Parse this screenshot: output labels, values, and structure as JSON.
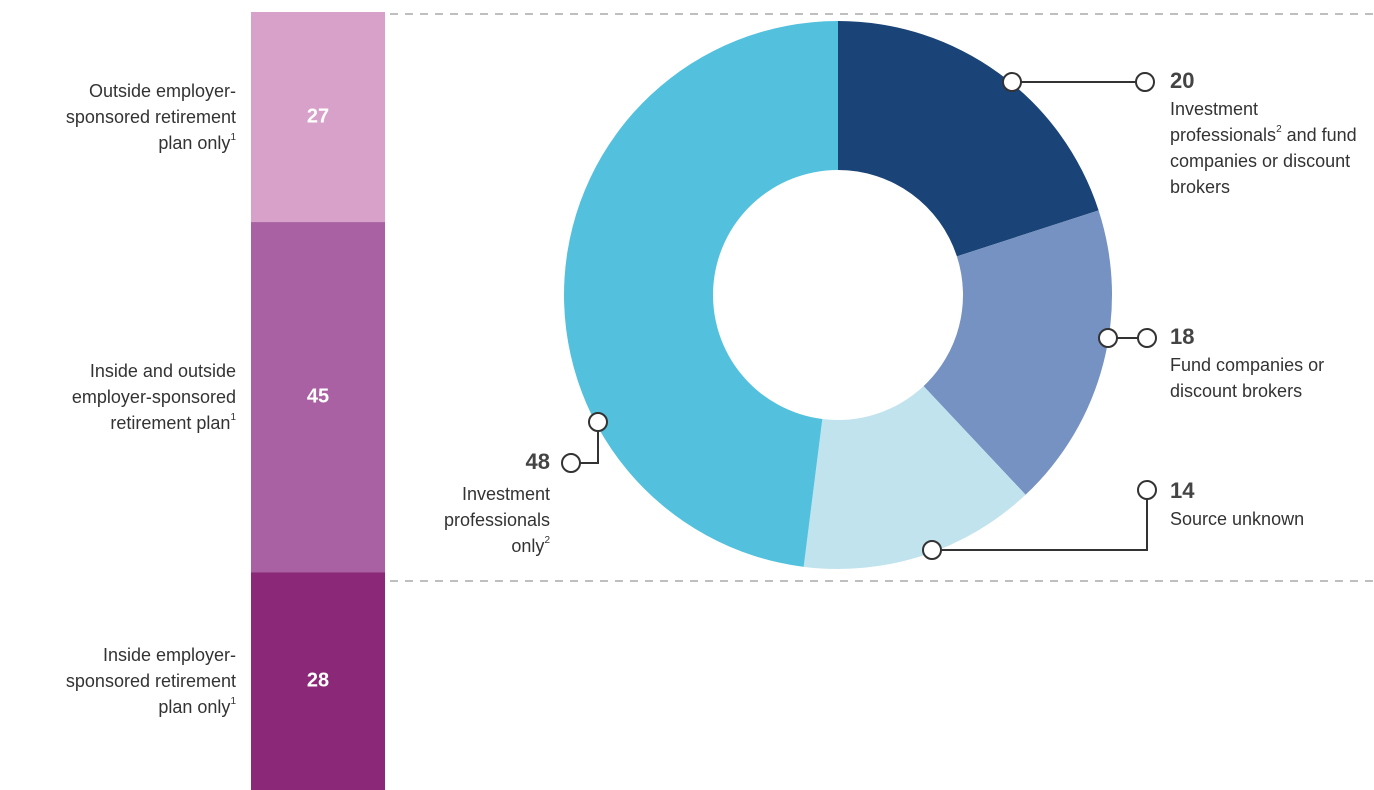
{
  "chart_data": [
    {
      "type": "stacked-bar",
      "categories": [
        [
          "Outside employer-sponsored retirement plan only",
          "1"
        ],
        [
          "Inside and outside employer-sponsored retirement plan",
          "1"
        ],
        [
          "Inside employer-sponsored retirement plan only",
          "1"
        ]
      ],
      "values": [
        27,
        45,
        28
      ],
      "colors": [
        "#d8a1c9",
        "#a961a3",
        "#8b2878"
      ]
    },
    {
      "type": "donut",
      "categories": [
        [
          "Investment professionals",
          "2",
          " and fund companies or discount brokers"
        ],
        [
          "Fund companies or discount brokers"
        ],
        [
          "Source unknown"
        ],
        [
          "Investment professionals only",
          "2"
        ]
      ],
      "values": [
        20,
        18,
        14,
        48
      ],
      "colors": [
        "#1a4477",
        "#7592c2",
        "#c1e3ee",
        "#53c1dd"
      ]
    }
  ]
}
